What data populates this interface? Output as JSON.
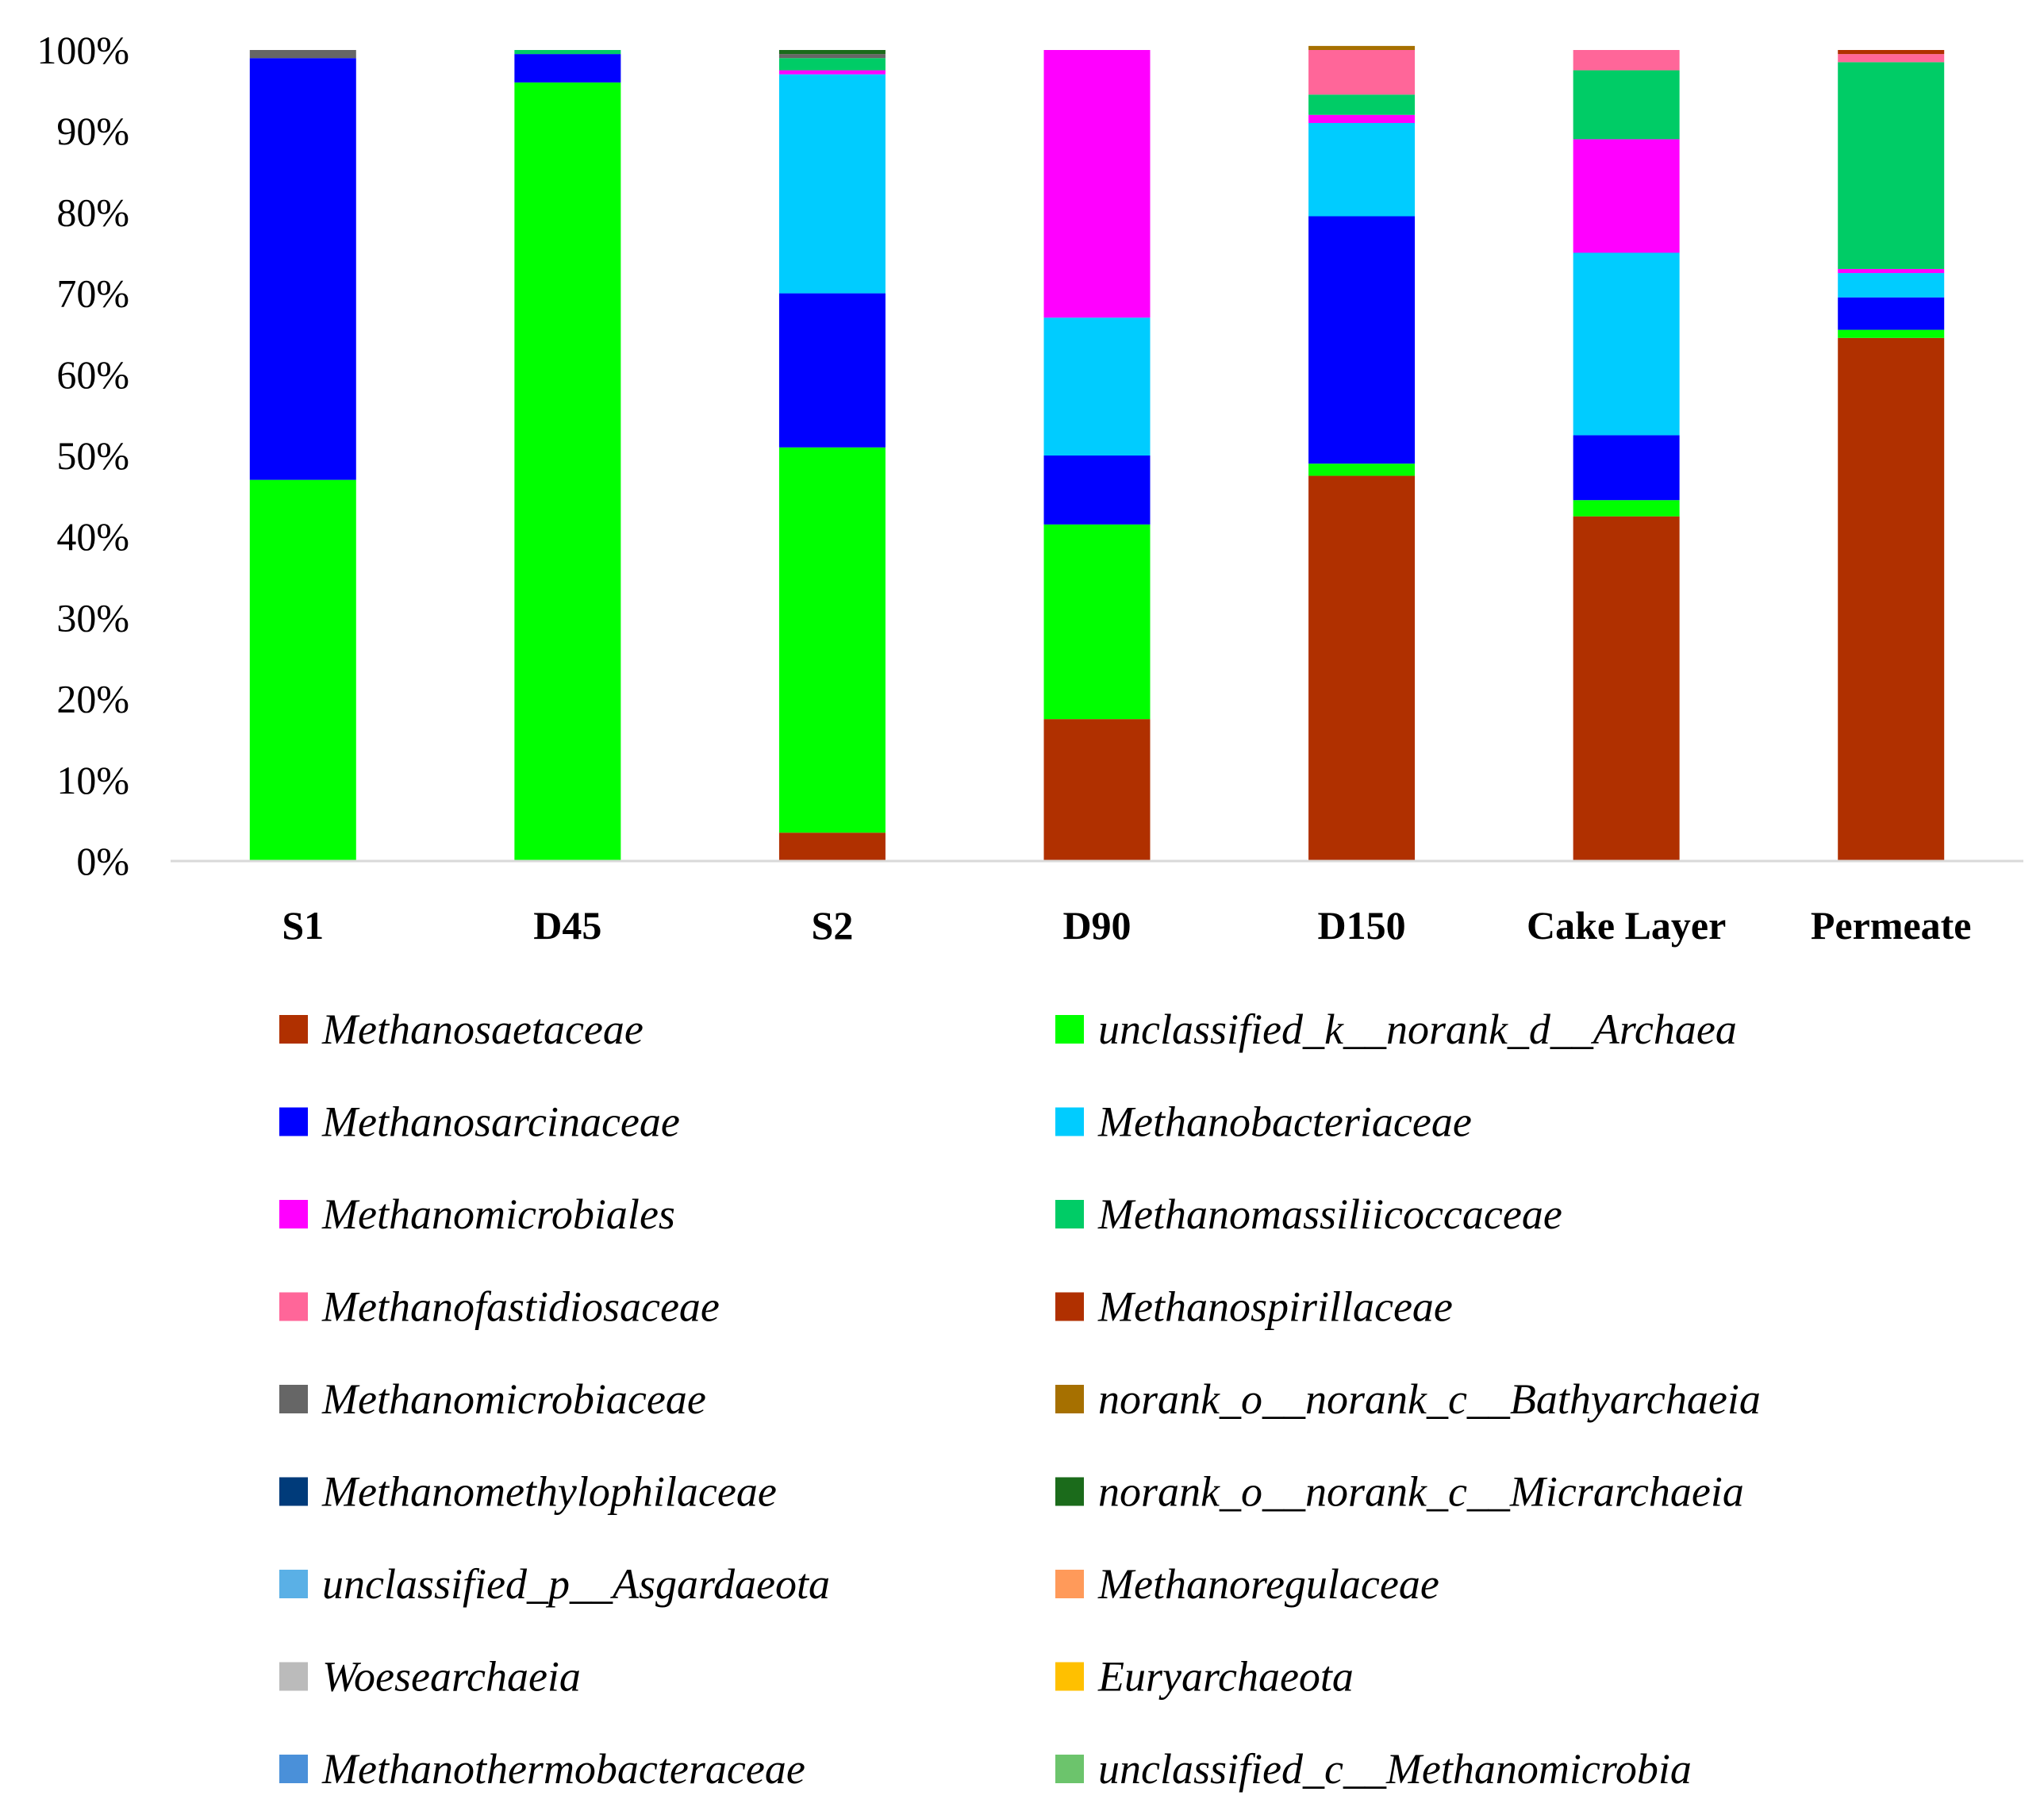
{
  "chart_data": {
    "type": "bar",
    "stacked": true,
    "percent": true,
    "title": "",
    "xlabel": "",
    "ylabel": "",
    "ylim": [
      0,
      100
    ],
    "yticks": [
      "0%",
      "10%",
      "20%",
      "30%",
      "40%",
      "50%",
      "60%",
      "70%",
      "80%",
      "90%",
      "100%"
    ],
    "categories": [
      "S1",
      "D45",
      "S2",
      "D90",
      "D150",
      "Cake Layer",
      "Permeate"
    ],
    "series": [
      {
        "name": "Methanosaetaceae",
        "color": "#b03000",
        "values": [
          0,
          0,
          3.5,
          17.5,
          47.5,
          42.5,
          64.5
        ]
      },
      {
        "name": "unclassified_k__norank_d__Archaea",
        "color": "#00ff00",
        "values": [
          47,
          96,
          47.5,
          24,
          1.5,
          2,
          1
        ]
      },
      {
        "name": "Methanosarcinaceae",
        "color": "#0000ff",
        "values": [
          52,
          3.5,
          19,
          8.5,
          30.5,
          8,
          4
        ]
      },
      {
        "name": "Methanobacteriaceae",
        "color": "#00ccff",
        "values": [
          0,
          0,
          27,
          17,
          11.5,
          22.5,
          3
        ]
      },
      {
        "name": "Methanomicrobiales",
        "color": "#ff00ff",
        "values": [
          0,
          0,
          0.5,
          33,
          1,
          14,
          0.5
        ]
      },
      {
        "name": "Methanomassiliicoccaceae",
        "color": "#00cc66",
        "values": [
          0,
          0.5,
          1.5,
          0,
          2.5,
          8.5,
          25.5
        ]
      },
      {
        "name": "Methanofastidiosaceae",
        "color": "#ff6699",
        "values": [
          0,
          0,
          0,
          0,
          5.5,
          2.5,
          1
        ]
      },
      {
        "name": "Methanospirillaceae",
        "color": "#b03000",
        "values": [
          0,
          0,
          0,
          0,
          0,
          0,
          0.5
        ]
      },
      {
        "name": "Methanomicrobiaceae",
        "color": "#666666",
        "values": [
          1,
          0,
          0.5,
          0,
          0,
          0,
          0
        ]
      },
      {
        "name": "norank_o__norank_c__Bathyarchaeia",
        "color": "#a67000",
        "values": [
          0,
          0,
          0,
          0,
          0.5,
          0,
          0
        ]
      },
      {
        "name": "Methanomethylophilaceae",
        "color": "#003b7a",
        "values": [
          0,
          0,
          0,
          0,
          0,
          0,
          0
        ]
      },
      {
        "name": "norank_o__norank_c__Micrarchaeia",
        "color": "#1b6b1b",
        "values": [
          0,
          0,
          0.5,
          0,
          0,
          0,
          0
        ]
      },
      {
        "name": "unclassified_p__Asgardaeota",
        "color": "#5ab0e6",
        "values": [
          0,
          0,
          0,
          0,
          0,
          0,
          0
        ]
      },
      {
        "name": "Methanoregulaceae",
        "color": "#ff9a5a",
        "values": [
          0,
          0,
          0,
          0,
          0,
          0,
          0
        ]
      },
      {
        "name": "Woesearchaeia",
        "color": "#bbbbbb",
        "values": [
          0,
          0,
          0,
          0,
          0,
          0,
          0
        ]
      },
      {
        "name": "Euryarchaeota",
        "color": "#ffc000",
        "values": [
          0,
          0,
          0,
          0,
          0,
          0,
          0
        ]
      },
      {
        "name": "Methanothermobacteraceae",
        "color": "#4a90d9",
        "values": [
          0,
          0,
          0,
          0,
          0,
          0,
          0
        ]
      },
      {
        "name": "unclassified_c__Methanomicrobia",
        "color": "#6cc46c",
        "values": [
          0,
          0,
          0,
          0,
          0,
          0,
          0
        ]
      }
    ],
    "legend": {
      "placement": "bottom",
      "columns": 2
    },
    "grid": false
  }
}
